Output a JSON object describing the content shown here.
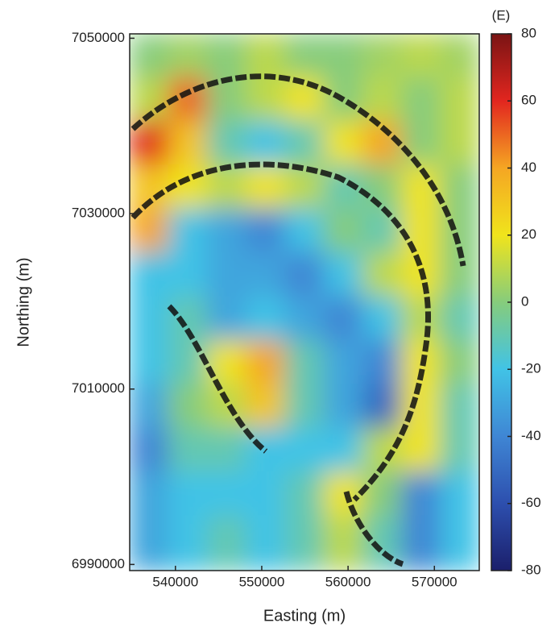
{
  "chart_data": {
    "type": "heatmap",
    "x_label": "Easting (m)",
    "y_label": "Northing (m)",
    "colorbar_label": "(E)",
    "x": [
      537000,
      541500,
      546000,
      550500,
      555000,
      559500,
      564000,
      568500,
      573000
    ],
    "y": [
      7048000,
      7043000,
      7038000,
      7033000,
      7028000,
      7023000,
      7018000,
      7013000,
      7008000,
      7003000,
      6998000,
      6993000
    ],
    "z": [
      [
        0,
        5,
        0,
        10,
        0,
        0,
        5,
        10,
        5
      ],
      [
        10,
        50,
        0,
        10,
        20,
        0,
        10,
        0,
        10
      ],
      [
        60,
        30,
        -10,
        -20,
        -10,
        20,
        40,
        0,
        10
      ],
      [
        30,
        20,
        10,
        20,
        10,
        -10,
        0,
        20,
        0
      ],
      [
        40,
        -20,
        -30,
        -40,
        -20,
        0,
        -10,
        20,
        0
      ],
      [
        -20,
        -20,
        -30,
        -30,
        -40,
        -20,
        10,
        20,
        0
      ],
      [
        -20,
        -10,
        -30,
        -20,
        -30,
        -40,
        -20,
        10,
        -10
      ],
      [
        -20,
        -10,
        20,
        40,
        -10,
        -30,
        -40,
        20,
        0
      ],
      [
        -30,
        0,
        10,
        30,
        -10,
        -30,
        -50,
        20,
        -10
      ],
      [
        -40,
        -10,
        -10,
        -20,
        -20,
        -20,
        10,
        20,
        -10
      ],
      [
        -30,
        -20,
        -20,
        -20,
        -10,
        20,
        0,
        -40,
        -20
      ],
      [
        -30,
        -20,
        -10,
        -20,
        -10,
        10,
        -10,
        -40,
        -20
      ]
    ],
    "xlim": [
      534700,
      575200
    ],
    "ylim": [
      6989300,
      7050500
    ],
    "xticks": [
      540000,
      550000,
      560000,
      570000
    ],
    "yticks": [
      6990000,
      7010000,
      7030000,
      7050000
    ],
    "zlim": [
      -80,
      80
    ],
    "zticks": [
      -80,
      -60,
      -40,
      -20,
      0,
      20,
      40,
      60,
      80
    ],
    "colorscale": [
      "#1b1f6b",
      "#2d4fae",
      "#3f86d4",
      "#41c3e6",
      "#86cc7c",
      "#f0e41c",
      "#f5a623",
      "#e2261f",
      "#7a1414"
    ]
  }
}
